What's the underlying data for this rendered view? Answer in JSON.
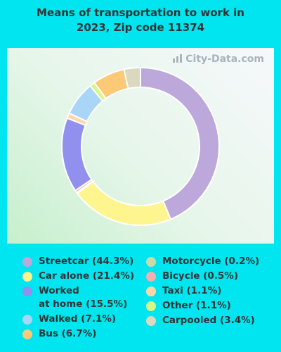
{
  "title_line1": "Means of transportation to work in",
  "title_line2": "2023, Zip code 11374",
  "watermark": "City-Data.com",
  "chart_data": {
    "type": "pie",
    "donut": true,
    "slices": [
      {
        "label": "Streetcar",
        "value": 44.3,
        "color": "#bca8db"
      },
      {
        "label": "Car alone",
        "value": 21.4,
        "color": "#fff58e"
      },
      {
        "label": "Motorcycle",
        "value": 0.2,
        "color": "#c9d9a9"
      },
      {
        "label": "Bicycle",
        "value": 0.5,
        "color": "#f0b0b0"
      },
      {
        "label": "Worked at home",
        "value": 15.5,
        "color": "#9190ee"
      },
      {
        "label": "Taxi",
        "value": 1.1,
        "color": "#fdd7aa"
      },
      {
        "label": "Walked",
        "value": 7.1,
        "color": "#a9d5f7"
      },
      {
        "label": "Other",
        "value": 1.1,
        "color": "#d7f784"
      },
      {
        "label": "Bus",
        "value": 6.7,
        "color": "#fcc977"
      },
      {
        "label": "Carpooled",
        "value": 3.4,
        "color": "#dcd8bf"
      }
    ]
  },
  "legend": {
    "left": [
      {
        "lines": [
          "Streetcar (44.3%)"
        ],
        "color": "#bca8db"
      },
      {
        "lines": [
          "Car alone (21.4%)"
        ],
        "color": "#fff58e"
      },
      {
        "lines": [
          "Worked",
          "at home (15.5%)"
        ],
        "color": "#9190ee"
      },
      {
        "lines": [
          "Walked (7.1%)"
        ],
        "color": "#a9d5f7"
      },
      {
        "lines": [
          "Bus (6.7%)"
        ],
        "color": "#fcc977"
      }
    ],
    "right": [
      {
        "lines": [
          "Motorcycle (0.2%)"
        ],
        "color": "#c9d9a9"
      },
      {
        "lines": [
          "Bicycle (0.5%)"
        ],
        "color": "#f0b0b0"
      },
      {
        "lines": [
          "Taxi (1.1%)"
        ],
        "color": "#fdd7aa"
      },
      {
        "lines": [
          "Other (1.1%)"
        ],
        "color": "#d7f784"
      },
      {
        "lines": [
          "Carpooled (3.4%)"
        ],
        "color": "#dcd8bf"
      }
    ]
  }
}
